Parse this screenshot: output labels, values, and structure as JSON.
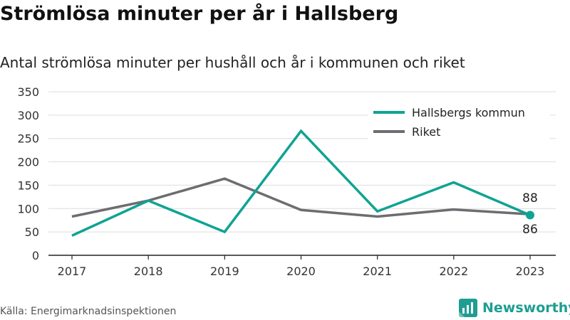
{
  "title": "Strömlösa minuter per år i Hallsberg",
  "subtitle": "Antal strömlösa minuter per hushåll och år i kommunen och riket",
  "source": "Källa: Energimarknadsinspektionen",
  "brand": "Newsworthy",
  "colors": {
    "kommun": "#0fa393",
    "riket": "#6d6c71",
    "grid": "#dddddd",
    "axis": "#222222",
    "brand": "#1e9e92"
  },
  "chart_data": {
    "type": "line",
    "x": [
      "2017",
      "2018",
      "2019",
      "2020",
      "2021",
      "2022",
      "2023"
    ],
    "ylim": [
      0,
      350
    ],
    "yticks": [
      0,
      50,
      100,
      150,
      200,
      250,
      300,
      350
    ],
    "grid": true,
    "legend": "top-right",
    "series": [
      {
        "name": "Hallsbergs kommun",
        "values": [
          42,
          117,
          50,
          266,
          94,
          156,
          86
        ]
      },
      {
        "name": "Riket",
        "values": [
          83,
          117,
          164,
          97,
          83,
          98,
          88
        ]
      }
    ],
    "end_labels": [
      "88",
      "86"
    ]
  }
}
